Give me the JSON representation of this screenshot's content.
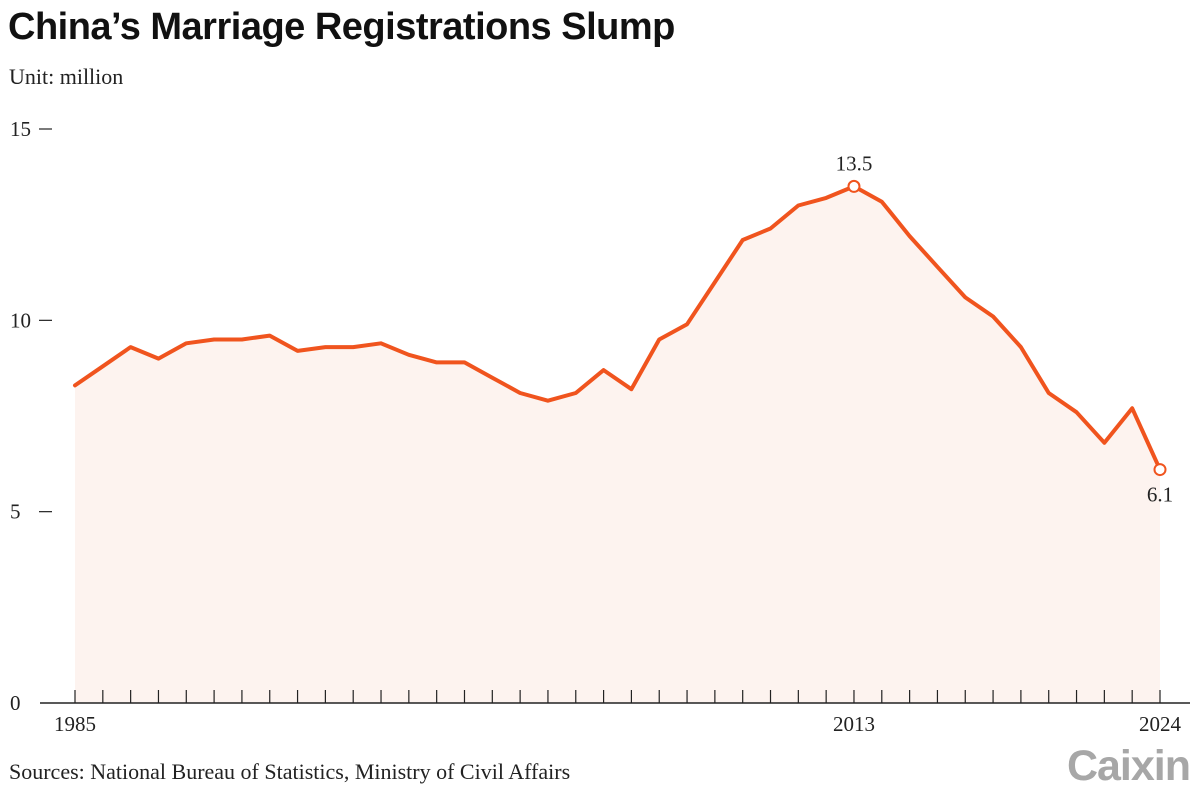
{
  "header": {
    "title": "China’s Marriage Registrations Slump",
    "unit": "Unit: million"
  },
  "footer": {
    "source": "Sources: National Bureau of Statistics, Ministry of Civil Affairs",
    "logo": "Caixin"
  },
  "colors": {
    "line": "#F0541E",
    "area": "#FDF3EF",
    "axis": "#222222",
    "logo": "#A7A7A7"
  },
  "chart_data": {
    "type": "area",
    "x": [
      1985,
      1986,
      1987,
      1988,
      1989,
      1990,
      1991,
      1992,
      1993,
      1994,
      1995,
      1996,
      1997,
      1998,
      1999,
      2000,
      2001,
      2002,
      2003,
      2004,
      2005,
      2006,
      2007,
      2008,
      2009,
      2010,
      2011,
      2012,
      2013,
      2014,
      2015,
      2016,
      2017,
      2018,
      2019,
      2020,
      2021,
      2022,
      2023,
      2024
    ],
    "series": [
      {
        "values": [
          8.3,
          8.8,
          9.3,
          9.0,
          9.4,
          9.5,
          9.5,
          9.6,
          9.2,
          9.3,
          9.3,
          9.4,
          9.1,
          8.9,
          8.9,
          8.5,
          8.1,
          7.9,
          8.1,
          8.7,
          8.2,
          9.5,
          9.9,
          11.0,
          12.1,
          12.4,
          13.0,
          13.2,
          13.5,
          13.1,
          12.2,
          11.4,
          10.6,
          10.1,
          9.3,
          8.1,
          7.6,
          6.8,
          7.7,
          6.1
        ]
      }
    ],
    "ylim": [
      0,
      15
    ],
    "yticks": [
      0,
      5,
      10,
      15
    ],
    "xtick_labels": [
      "1985",
      "2013",
      "2024"
    ],
    "annotations": [
      {
        "x": 2013,
        "y": 13.5,
        "text": "13.5"
      },
      {
        "x": 2024,
        "y": 6.1,
        "text": "6.1"
      }
    ],
    "xlabel": "",
    "ylabel": "",
    "grid": false
  }
}
